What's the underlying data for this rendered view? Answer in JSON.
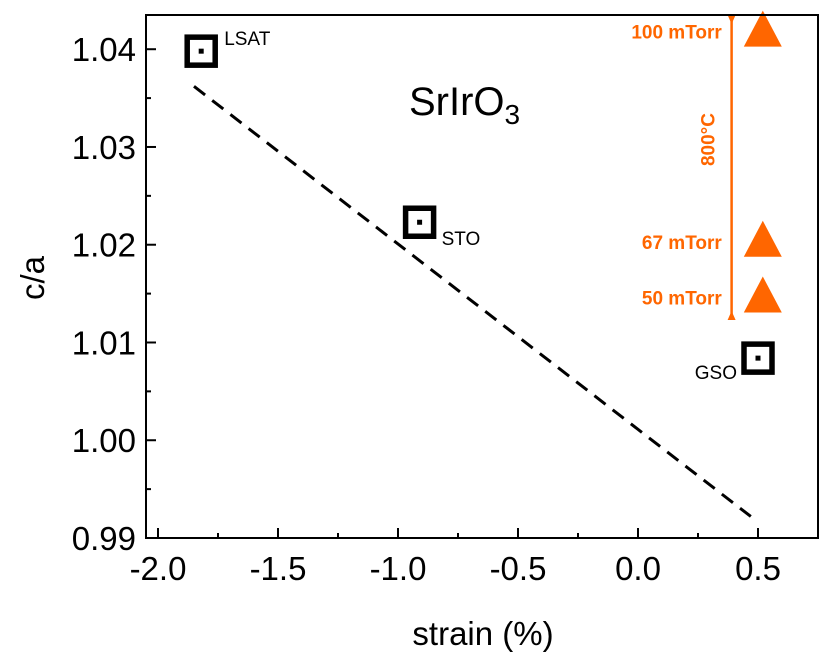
{
  "chart_data": {
    "type": "scatter",
    "title": "SrIrO",
    "title_subscript": "3",
    "xlabel": "strain (%)",
    "ylabel": "c/a",
    "xlim": [
      -2.05,
      0.75
    ],
    "ylim": [
      0.99,
      1.0435
    ],
    "x_ticks": [
      {
        "value": -2.0,
        "label": "-2.0"
      },
      {
        "value": -1.5,
        "label": "-1.5"
      },
      {
        "value": -1.0,
        "label": "-1.0"
      },
      {
        "value": -0.5,
        "label": "-0.5"
      },
      {
        "value": 0.0,
        "label": "0.0"
      },
      {
        "value": 0.5,
        "label": "0.5"
      }
    ],
    "y_ticks": [
      {
        "value": 0.99,
        "label": "0.99"
      },
      {
        "value": 1.0,
        "label": "1.00"
      },
      {
        "value": 1.01,
        "label": "1.01"
      },
      {
        "value": 1.02,
        "label": "1.02"
      },
      {
        "value": 1.03,
        "label": "1.03"
      },
      {
        "value": 1.04,
        "label": "1.04"
      }
    ],
    "substrate_series": {
      "name": "substrates",
      "marker": "dotted-square",
      "color": "#000000",
      "points": [
        {
          "x": -1.82,
          "y": 1.0398,
          "label": "LSAT",
          "label_pos": "upper-right"
        },
        {
          "x": -0.91,
          "y": 1.0223,
          "label": "STO",
          "label_pos": "lower-right"
        },
        {
          "x": 0.5,
          "y": 1.0084,
          "label": "GSO",
          "label_pos": "lower-left"
        }
      ]
    },
    "pressure_series": {
      "name": "oxygen pressure",
      "marker": "triangle",
      "color": "#ff6600",
      "points": [
        {
          "x": 0.52,
          "y": 1.0418,
          "label": "100 mTorr"
        },
        {
          "x": 0.52,
          "y": 1.0203,
          "label": "67  mTorr"
        },
        {
          "x": 0.52,
          "y": 1.0146,
          "label": "50 mTorr"
        }
      ]
    },
    "trend_line": {
      "style": "dashed",
      "color": "#000000",
      "x": [
        -1.85,
        0.47
      ],
      "y": [
        1.0362,
        0.9922
      ]
    },
    "annotation_bar": {
      "label": "800°C",
      "color": "#ff6600",
      "x": 0.39,
      "y_range": [
        1.0123,
        1.0435
      ]
    }
  }
}
